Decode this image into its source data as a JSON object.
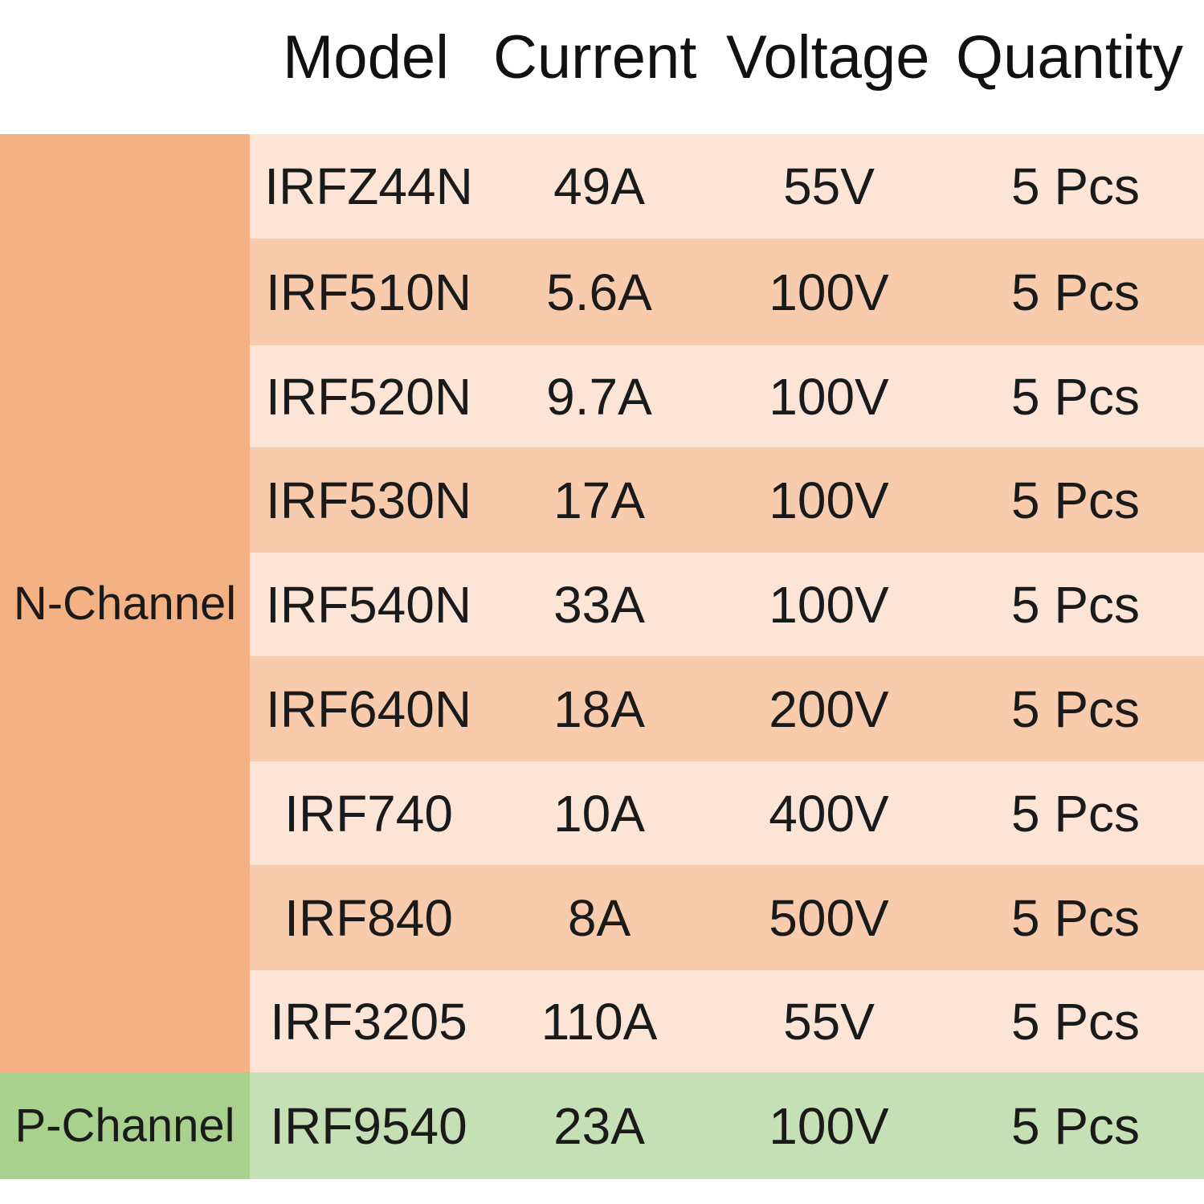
{
  "header": {
    "columns": [
      "Model",
      "Current",
      "Voltage",
      "Quantity"
    ]
  },
  "colors": {
    "n_label_bg": "#F4B183",
    "row_light": "#FCE4D6",
    "row_dark": "#F8CBAD",
    "p_label_bg": "#A9D18E",
    "p_row_bg": "#C5E0B4"
  },
  "groups": [
    {
      "label": "N-Channel",
      "rows": [
        {
          "model": "IRFZ44N",
          "current": "49A",
          "voltage": "55V",
          "quantity": "5 Pcs"
        },
        {
          "model": "IRF510N",
          "current": "5.6A",
          "voltage": "100V",
          "quantity": "5 Pcs"
        },
        {
          "model": "IRF520N",
          "current": "9.7A",
          "voltage": "100V",
          "quantity": "5 Pcs"
        },
        {
          "model": "IRF530N",
          "current": "17A",
          "voltage": "100V",
          "quantity": "5 Pcs"
        },
        {
          "model": "IRF540N",
          "current": "33A",
          "voltage": "100V",
          "quantity": "5 Pcs"
        },
        {
          "model": "IRF640N",
          "current": "18A",
          "voltage": "200V",
          "quantity": "5 Pcs"
        },
        {
          "model": "IRF740",
          "current": "10A",
          "voltage": "400V",
          "quantity": "5 Pcs"
        },
        {
          "model": "IRF840",
          "current": "8A",
          "voltage": "500V",
          "quantity": "5 Pcs"
        },
        {
          "model": "IRF3205",
          "current": "110A",
          "voltage": "55V",
          "quantity": "5 Pcs"
        }
      ]
    },
    {
      "label": "P-Channel",
      "rows": [
        {
          "model": "IRF9540",
          "current": "23A",
          "voltage": "100V",
          "quantity": "5 Pcs"
        }
      ]
    }
  ]
}
